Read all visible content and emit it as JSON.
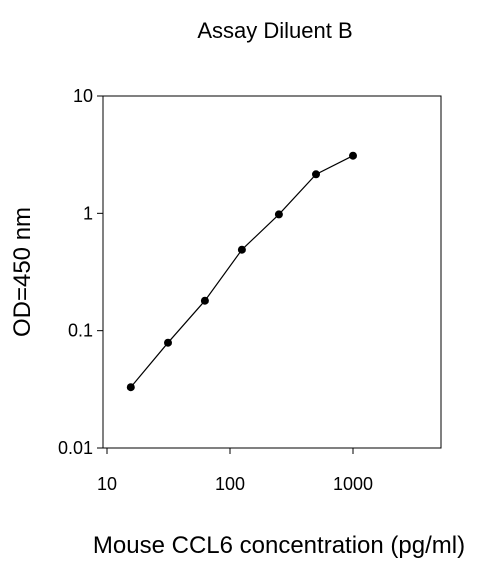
{
  "chart_data": {
    "type": "line",
    "title": "Assay Diluent B",
    "xlabel": "Mouse CCL6 concentration (pg/ml)",
    "ylabel": "OD=450 nm",
    "x_scale": "log",
    "y_scale": "log",
    "xlim": [
      10,
      5000
    ],
    "ylim": [
      0.01,
      10
    ],
    "x_ticks": [
      10,
      100,
      1000
    ],
    "x_tick_labels": [
      "10",
      "100",
      "1000"
    ],
    "y_ticks": [
      0.01,
      0.1,
      1,
      10
    ],
    "y_tick_labels": [
      "0.01",
      "0.1",
      "1",
      "10"
    ],
    "grid": false,
    "legend": "none",
    "series": [
      {
        "x": [
          15.6,
          31.3,
          62.5,
          125,
          250,
          500,
          1000
        ],
        "y": [
          0.033,
          0.079,
          0.18,
          0.49,
          0.98,
          2.15,
          3.1
        ],
        "color": "#000000",
        "marker": "circle"
      }
    ]
  }
}
